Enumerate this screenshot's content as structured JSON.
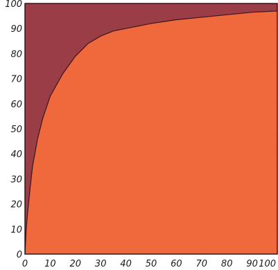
{
  "chart_data": {
    "type": "area",
    "title": "",
    "xlabel": "",
    "ylabel": "",
    "xlim": [
      0,
      100
    ],
    "ylim": [
      0,
      100
    ],
    "x_ticks": [
      0,
      10,
      20,
      30,
      40,
      50,
      60,
      70,
      80,
      90,
      100
    ],
    "y_ticks": [
      0,
      10,
      20,
      30,
      40,
      50,
      60,
      70,
      80,
      90,
      100
    ],
    "x_tick_labels": [
      "0",
      "10",
      "20",
      "30",
      "40",
      "50",
      "60",
      "70",
      "80",
      "90",
      "100"
    ],
    "y_tick_labels": [
      "0",
      "10",
      "20",
      "30",
      "40",
      "50",
      "60",
      "70",
      "80",
      "90",
      "100"
    ],
    "grid": false,
    "legend": "none",
    "colors": {
      "lower_region": "#f26a3e",
      "upper_region": "#9c3f48",
      "curve": "#3a1418",
      "frame": "#2a0c10"
    },
    "series": [
      {
        "x": [
          0,
          0.5,
          1,
          2,
          3,
          5,
          7,
          10,
          15,
          20,
          25,
          30,
          35,
          40,
          50,
          60,
          70,
          80,
          90,
          100
        ],
        "y": [
          0,
          10,
          16,
          26,
          35,
          46,
          54,
          63,
          72,
          79,
          84,
          87,
          89,
          90,
          92,
          93.5,
          94.5,
          95.5,
          96.5,
          97
        ]
      }
    ]
  }
}
